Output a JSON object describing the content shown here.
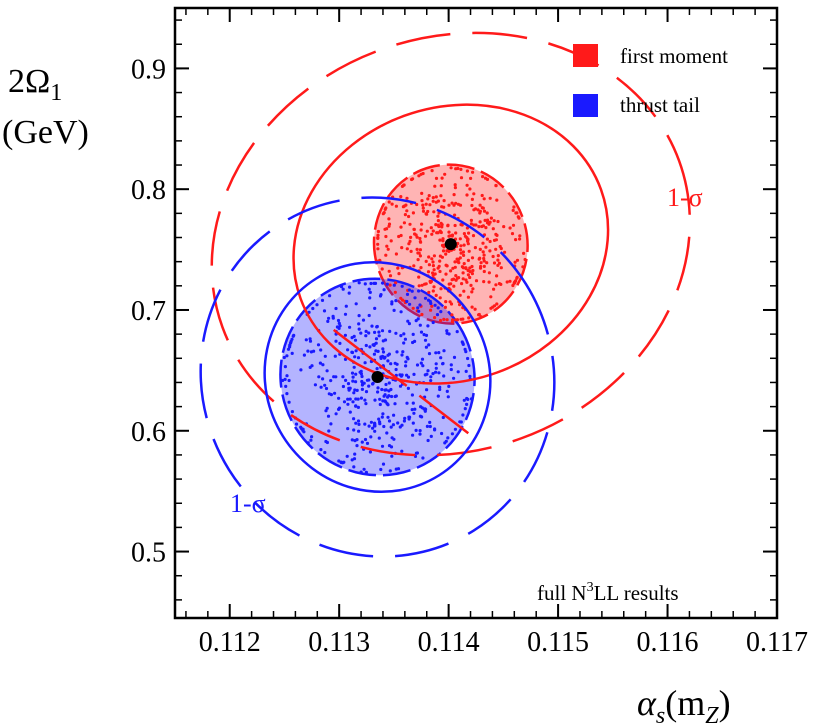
{
  "chart_data": {
    "type": "scatter",
    "title": "",
    "xlabel_main": "α",
    "xlabel_sub": "s",
    "xlabel_arg": "(m",
    "xlabel_arg_sub": "Z",
    "xlabel_close": ")",
    "ylabel_main": "2Ω",
    "ylabel_sub": "1",
    "ylabel_unit": "(GeV)",
    "xlim": [
      0.1115,
      0.117
    ],
    "ylim": [
      0.445,
      0.95
    ],
    "xticks": [
      0.112,
      0.113,
      0.114,
      0.115,
      0.116,
      0.117
    ],
    "xtick_labels": [
      "0.112",
      "0.113",
      "0.114",
      "0.115",
      "0.116",
      "0.117"
    ],
    "yticks": [
      0.5,
      0.6,
      0.7,
      0.8,
      0.9
    ],
    "ytick_labels": [
      "0.5",
      "0.6",
      "0.7",
      "0.8",
      "0.9"
    ],
    "legend_position": "top-right",
    "legend": [
      {
        "name": "first moment",
        "color": "#ff1a1a"
      },
      {
        "name": "thrust tail",
        "color": "#1a1aff"
      }
    ],
    "annotations": {
      "red_sigma": "1-σ",
      "blue_sigma": "1-σ",
      "footer_prefix": "full N",
      "footer_sup": "3",
      "footer_suffix": "LL results"
    },
    "series": [
      {
        "name": "first moment",
        "color": "#ff1a1a",
        "center": [
          0.11402,
          0.7545
        ],
        "filled_ellipse": {
          "semi_axis_x": 0.0007,
          "semi_axis_y": 0.066,
          "correlation_angle_deg": -15
        },
        "solid_ellipse": {
          "semi_axis_x": 0.00146,
          "semi_axis_y": 0.113,
          "correlation_angle_deg": -20
        },
        "dashed_ellipse": {
          "semi_axis_x": 0.00222,
          "semi_axis_y": 0.171,
          "correlation_angle_deg": -20
        },
        "fit_line": [
          [
            0.11295,
            0.6835
          ],
          [
            0.11418,
            0.598
          ]
        ],
        "point_count": 450
      },
      {
        "name": "thrust tail",
        "color": "#1a1aff",
        "center": [
          0.11335,
          0.6445
        ],
        "filled_ellipse": {
          "semi_axis_x": 0.00088,
          "semi_axis_y": 0.082,
          "correlation_angle_deg": -32
        },
        "solid_ellipse": {
          "semi_axis_x": 0.00102,
          "semi_axis_y": 0.096,
          "correlation_angle_deg": -32
        },
        "dashed_ellipse": {
          "semi_axis_x": 0.0016,
          "semi_axis_y": 0.15,
          "correlation_angle_deg": -32
        },
        "point_count": 500
      }
    ]
  }
}
